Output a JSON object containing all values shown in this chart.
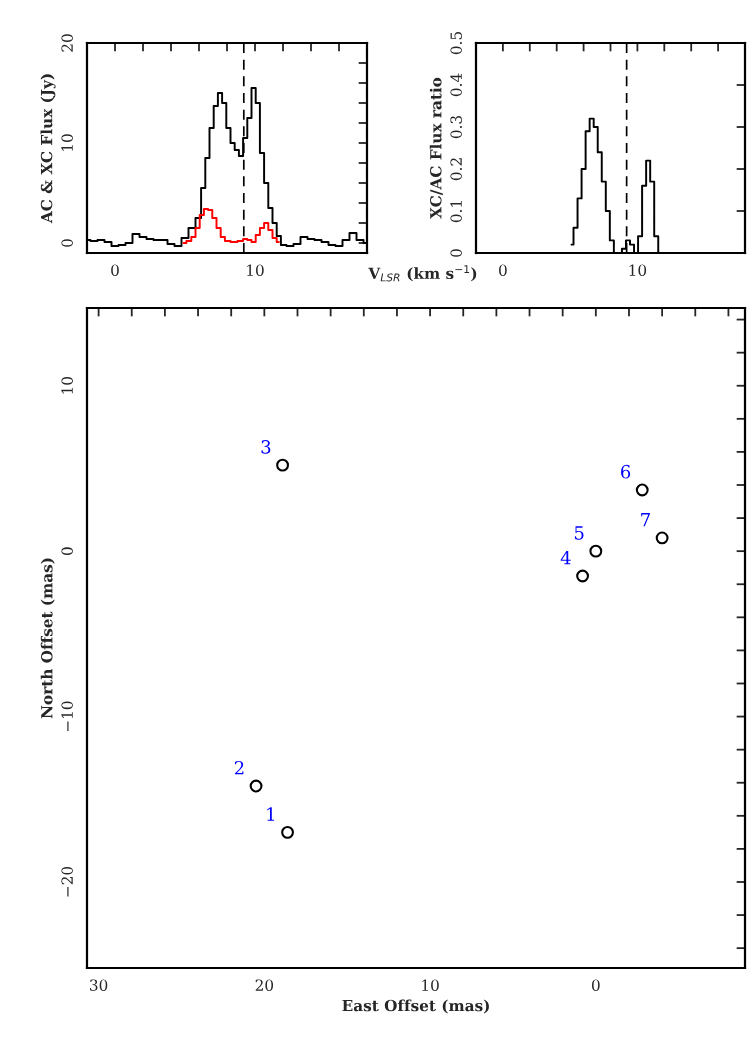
{
  "chart_data": [
    {
      "type": "step",
      "xlabel": "V$_{LSR}$ (km s$^{−1}$)",
      "ylabel": "AC & XC Flux (Jy)",
      "xlim": [
        -2,
        18
      ],
      "ylim": [
        -1,
        20
      ],
      "xticks": [
        {
          "value": -2,
          "label": null
        },
        0,
        {
          "value": 2,
          "label": null
        },
        {
          "value": 4,
          "label": null
        },
        {
          "value": 6,
          "label": null
        },
        {
          "value": 8,
          "label": null
        },
        10,
        {
          "value": 12,
          "label": null
        },
        {
          "value": 14,
          "label": null
        },
        {
          "value": 16,
          "label": null
        },
        {
          "value": 18,
          "label": null
        }
      ],
      "yticks": [
        0,
        {
          "value": 2,
          "label": null
        },
        {
          "value": 4,
          "label": null
        },
        {
          "value": 6,
          "label": null
        },
        {
          "value": 8,
          "label": null
        },
        10,
        {
          "value": 12,
          "label": null
        },
        {
          "value": 14,
          "label": null
        },
        {
          "value": 16,
          "label": null
        },
        {
          "value": 18,
          "label": null
        },
        20
      ],
      "ref_lines": [
        {
          "axis": "x",
          "value": 9.2,
          "color": "#000000",
          "line_style": "dashed"
        }
      ],
      "series": [
        {
          "color": "#000000",
          "x": [
            -2,
            -1.5,
            -1,
            -0.5,
            0,
            0.5,
            1,
            1.5,
            2,
            2.5,
            3,
            3.5,
            4,
            4.5,
            5,
            5.5,
            6,
            6.3,
            6.6,
            6.9,
            7.2,
            7.5,
            7.8,
            8.1,
            8.4,
            8.7,
            9.0,
            9.3,
            9.6,
            9.9,
            10.2,
            10.5,
            10.8,
            11.1,
            11.4,
            11.7,
            12,
            12.5,
            13,
            13.5,
            14,
            14.5,
            15,
            15.5,
            16,
            16.5,
            17,
            17.5,
            18
          ],
          "values": [
            0.3,
            0.2,
            0.3,
            0.1,
            -0.3,
            -0.2,
            0.0,
            0.9,
            0.6,
            0.4,
            0.3,
            0.3,
            -0.1,
            -0.3,
            0.5,
            1.5,
            2.5,
            5.5,
            8.5,
            11.5,
            13.7,
            15.0,
            14.0,
            11.5,
            10.0,
            9.3,
            8.7,
            10.5,
            12.5,
            15.5,
            14.0,
            9.0,
            6.0,
            3.5,
            2.0,
            0.7,
            -0.2,
            -0.3,
            -0.1,
            0.6,
            0.4,
            0.3,
            0.1,
            -0.2,
            -0.3,
            0.3,
            1.0,
            0.3,
            0.0
          ]
        },
        {
          "color": "#ff0000",
          "x": [
            4.9,
            5.3,
            5.6,
            5.9,
            6.2,
            6.5,
            6.8,
            7.1,
            7.4,
            7.7,
            8.0,
            8.5,
            9.0,
            9.3,
            9.6,
            9.9,
            10.2,
            10.5,
            10.8,
            11.1,
            11.4,
            11.7
          ],
          "values": [
            0.0,
            0.2,
            0.6,
            1.5,
            2.8,
            3.4,
            3.3,
            2.5,
            1.5,
            0.6,
            0.2,
            0.1,
            0.2,
            0.4,
            0.3,
            0.1,
            0.8,
            1.5,
            2.0,
            1.3,
            0.5,
            0.1
          ]
        }
      ]
    },
    {
      "type": "step",
      "ylabel": "XC/AC Flux ratio",
      "xlim": [
        -2,
        18
      ],
      "ylim": [
        0,
        0.5
      ],
      "xticks": [
        {
          "value": -2,
          "label": null
        },
        0,
        {
          "value": 2,
          "label": null
        },
        {
          "value": 4,
          "label": null
        },
        {
          "value": 6,
          "label": null
        },
        {
          "value": 8,
          "label": null
        },
        10,
        {
          "value": 12,
          "label": null
        },
        {
          "value": 14,
          "label": null
        },
        {
          "value": 16,
          "label": null
        }
      ],
      "yticks": [
        0,
        0.1,
        0.2,
        0.3,
        0.4,
        0.5
      ],
      "ref_lines": [
        {
          "axis": "x",
          "value": 9.2,
          "color": "#000000",
          "line_style": "dashed"
        }
      ],
      "series": [
        {
          "color": "#000000",
          "x": [
            5.1,
            5.4,
            5.7,
            6.0,
            6.3,
            6.6,
            6.9,
            7.2,
            7.5,
            7.8,
            8.1,
            8.4,
            8.7,
            9.0,
            9.3,
            9.6,
            9.9,
            10.2,
            10.5,
            10.8,
            11.1,
            11.4,
            11.7
          ],
          "values": [
            0.02,
            0.06,
            0.13,
            0.2,
            0.29,
            0.32,
            0.3,
            0.24,
            0.17,
            0.1,
            0.03,
            0.0,
            0.0,
            0.01,
            0.03,
            0.02,
            0.0,
            0.04,
            0.16,
            0.22,
            0.17,
            0.04,
            0.0
          ]
        }
      ]
    },
    {
      "type": "scatter",
      "xlabel": "East Offset (mas)",
      "ylabel": "North Offset (mas)",
      "xlim": [
        30.7,
        -9
      ],
      "ylim": [
        -25.2,
        14.7
      ],
      "marker": "circle",
      "xticks": [
        30,
        {
          "value": 28,
          "label": null
        },
        {
          "value": 26,
          "label": null
        },
        {
          "value": 24,
          "label": null
        },
        {
          "value": 22,
          "label": null
        },
        20,
        {
          "value": 18,
          "label": null
        },
        {
          "value": 16,
          "label": null
        },
        {
          "value": 14,
          "label": null
        },
        {
          "value": 12,
          "label": null
        },
        10,
        {
          "value": 8,
          "label": null
        },
        {
          "value": 6,
          "label": null
        },
        {
          "value": 4,
          "label": null
        },
        {
          "value": 2,
          "label": null
        },
        0,
        {
          "value": -2,
          "label": null
        },
        {
          "value": -4,
          "label": null
        },
        {
          "value": -6,
          "label": null
        },
        {
          "value": -8,
          "label": null
        }
      ],
      "yticks": [
        {
          "value": -24,
          "label": null
        },
        {
          "value": -22,
          "label": null
        },
        {
          "value": -20,
          "label": "−20"
        },
        {
          "value": -18,
          "label": null
        },
        {
          "value": -16,
          "label": null
        },
        {
          "value": -14,
          "label": null
        },
        {
          "value": -12,
          "label": null
        },
        {
          "value": -10,
          "label": "−10"
        },
        {
          "value": -8,
          "label": null
        },
        {
          "value": -6,
          "label": null
        },
        {
          "value": -4,
          "label": null
        },
        {
          "value": -2,
          "label": null
        },
        0,
        {
          "value": 2,
          "label": null
        },
        {
          "value": 4,
          "label": null
        },
        {
          "value": 6,
          "label": null
        },
        {
          "value": 8,
          "label": null
        },
        10,
        {
          "value": 12,
          "label": null
        },
        {
          "value": 14,
          "label": null
        }
      ],
      "series": [
        {
          "color": "#000000",
          "x": [
            18.6,
            20.5,
            18.9,
            0.8,
            0.0,
            -2.8,
            -4.0
          ],
          "values": [
            -17.0,
            -14.2,
            5.2,
            -1.5,
            0.0,
            3.7,
            0.8
          ]
        }
      ],
      "annotations": [
        {
          "text": "1",
          "x": 18.6,
          "y": -17.0
        },
        {
          "text": "2",
          "x": 20.5,
          "y": -14.2
        },
        {
          "text": "3",
          "x": 18.9,
          "y": 5.2
        },
        {
          "text": "4",
          "x": 0.8,
          "y": -1.5
        },
        {
          "text": "5",
          "x": 0.0,
          "y": 0.0
        },
        {
          "text": "6",
          "x": -2.8,
          "y": 3.7
        },
        {
          "text": "7",
          "x": -4.0,
          "y": 0.8
        }
      ]
    }
  ]
}
